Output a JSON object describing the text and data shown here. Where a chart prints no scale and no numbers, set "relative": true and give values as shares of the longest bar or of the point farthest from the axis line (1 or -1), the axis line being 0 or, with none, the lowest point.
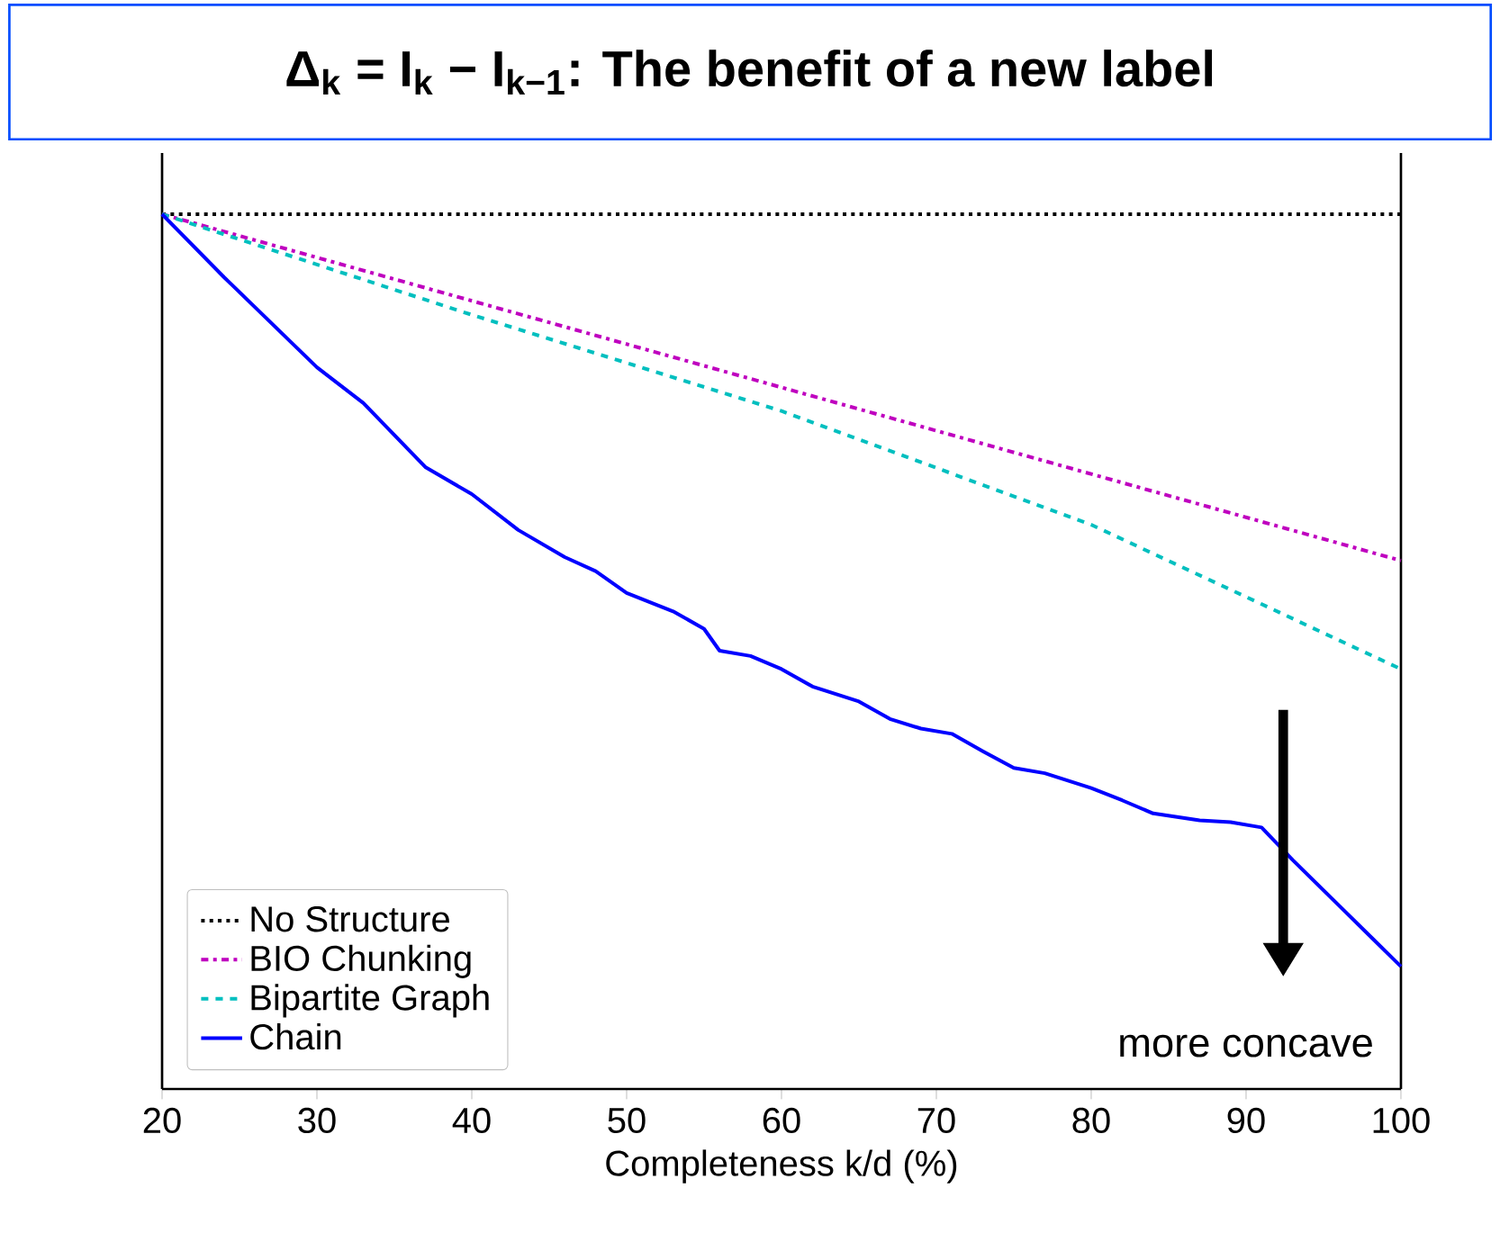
{
  "chart_data": {
    "type": "line",
    "title": "Δ$_{k}$ = I$_{k}$ − I$_{k−1}$: The benefit of a new label",
    "xlabel": "Completeness k/d (%)",
    "relative": true,
    "xlim": [
      20,
      100
    ],
    "xticks": [
      20,
      30,
      40,
      50,
      60,
      70,
      80,
      90,
      100
    ],
    "legend": "bottom left",
    "grid": false,
    "annotations": [
      "more concave"
    ],
    "series": [
      {
        "name": "No Structure",
        "color": "#000000",
        "line_style": "dotted",
        "x": [
          20,
          100
        ],
        "values": [
          1.0,
          1.0
        ]
      },
      {
        "name": "BIO Chunking",
        "color": "#bf00bf",
        "line_style": "dashdot",
        "x": [
          20,
          100
        ],
        "values": [
          1.0,
          0.604
        ]
      },
      {
        "name": "Bipartite Graph",
        "color": "#00bfbf",
        "line_style": "dashed",
        "x": [
          20,
          40,
          60,
          80,
          100
        ],
        "values": [
          1.0,
          0.885,
          0.775,
          0.645,
          0.48
        ]
      },
      {
        "name": "Chain",
        "color": "#0000ff",
        "line_style": "solid",
        "x": [
          20,
          24,
          30,
          33,
          37,
          40,
          43,
          46,
          48,
          50,
          53,
          55,
          56,
          58,
          60,
          62,
          65,
          67,
          69,
          71,
          73,
          75,
          77,
          80,
          82,
          84,
          87,
          89,
          91,
          93,
          100
        ],
        "values": [
          1.0,
          0.928,
          0.825,
          0.784,
          0.711,
          0.68,
          0.639,
          0.608,
          0.592,
          0.567,
          0.546,
          0.526,
          0.501,
          0.495,
          0.48,
          0.46,
          0.443,
          0.423,
          0.412,
          0.406,
          0.386,
          0.367,
          0.361,
          0.344,
          0.33,
          0.315,
          0.307,
          0.305,
          0.299,
          0.262,
          0.14
        ]
      }
    ]
  }
}
